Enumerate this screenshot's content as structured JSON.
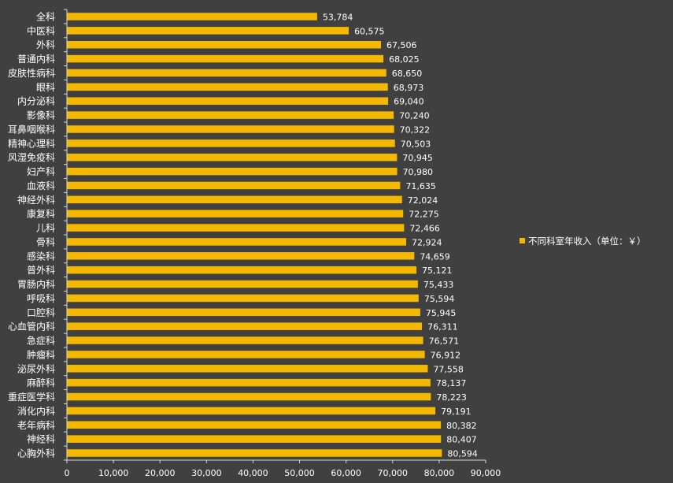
{
  "chart_data": {
    "type": "bar",
    "orientation": "horizontal",
    "categories": [
      "全科",
      "中医科",
      "外科",
      "普通内科",
      "皮肤性病科",
      "眼科",
      "内分泌科",
      "影像科",
      "耳鼻咽喉科",
      "精神心理科",
      "风湿免疫科",
      "妇产科",
      "血液科",
      "神经外科",
      "康复科",
      "儿科",
      "骨科",
      "感染科",
      "普外科",
      "胃肠内科",
      "呼吸科",
      "口腔科",
      "心血管内科",
      "急症科",
      "肿瘤科",
      "泌尿外科",
      "麻醉科",
      "重症医学科",
      "消化内科",
      "老年病科",
      "神经科",
      "心胸外科"
    ],
    "series": [
      {
        "name": "不同科室年收入（单位：￥）",
        "values": [
          53784,
          60575,
          67506,
          68025,
          68650,
          68973,
          69040,
          70240,
          70322,
          70503,
          70945,
          70980,
          71635,
          72024,
          72275,
          72466,
          72924,
          74659,
          75121,
          75433,
          75594,
          75945,
          76311,
          76571,
          76912,
          77558,
          78137,
          78223,
          79191,
          80382,
          80407,
          80594
        ],
        "data_labels": [
          "53,784",
          "60,575",
          "67,506",
          "68,025",
          "68,650",
          "68,973",
          "69,040",
          "70,240",
          "70,322",
          "70,503",
          "70,945",
          "70,980",
          "71,635",
          "72,024",
          "72,275",
          "72,466",
          "72,924",
          "74,659",
          "75,121",
          "75,433",
          "75,594",
          "75,945",
          "76,311",
          "76,571",
          "76,912",
          "77,558",
          "78,137",
          "78,223",
          "79,191",
          "80,382",
          "80,407",
          "80,594"
        ]
      }
    ],
    "xlim": [
      0,
      90000
    ],
    "x_ticks": [
      0,
      10000,
      20000,
      30000,
      40000,
      50000,
      60000,
      70000,
      80000,
      90000
    ],
    "x_tick_labels": [
      "0",
      "10,000",
      "20,000",
      "30,000",
      "40,000",
      "50,000",
      "60,000",
      "70,000",
      "80,000",
      "90,000"
    ],
    "grid": false,
    "legend_position": "right",
    "colors": {
      "bar": "#F5B800",
      "background": "#404040",
      "axis": "#d9d9d9",
      "text": "#ffffff"
    }
  }
}
